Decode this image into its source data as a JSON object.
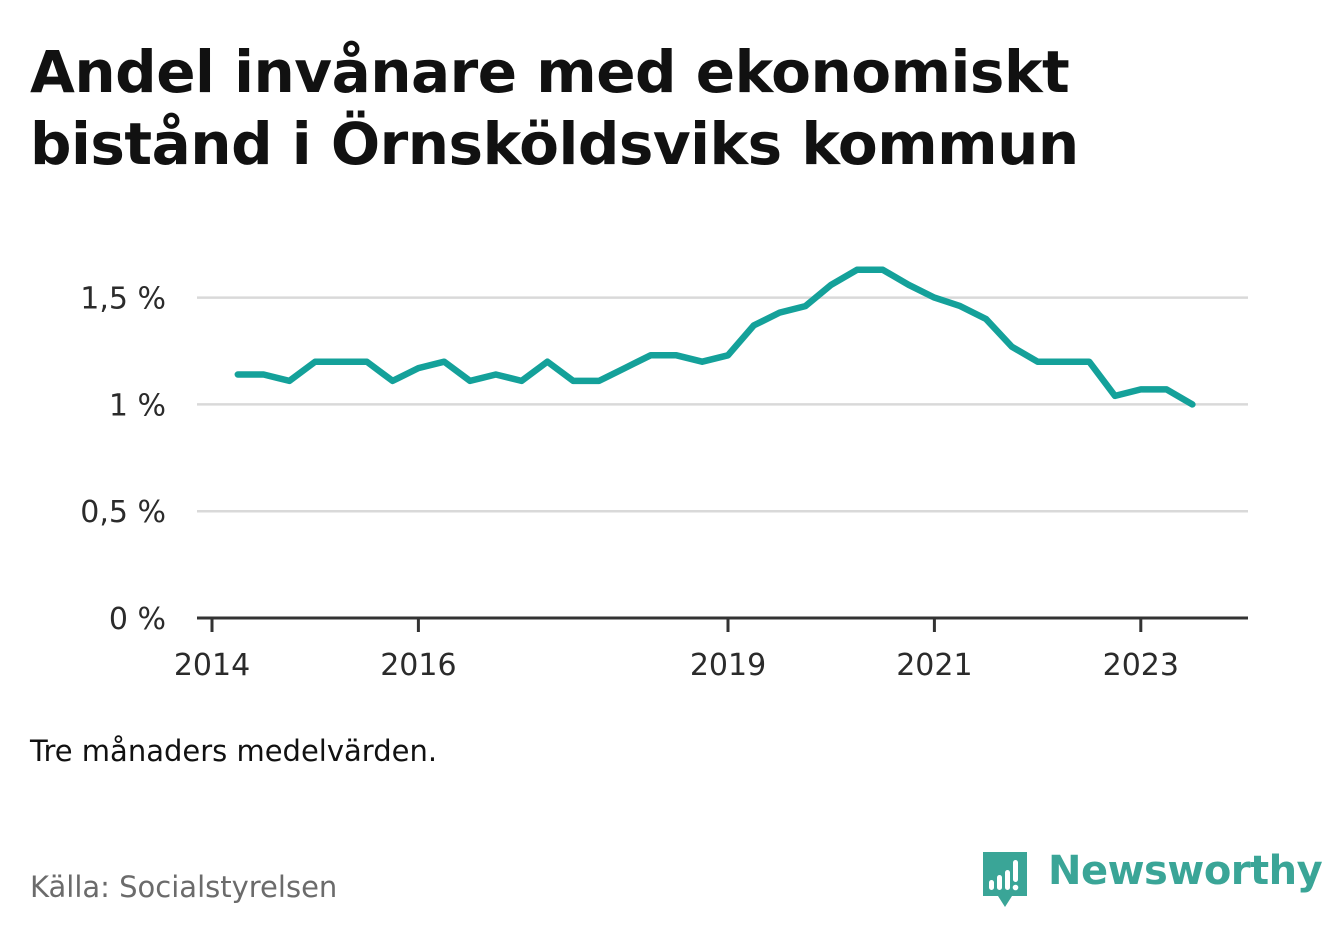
{
  "title": "Andel invånare med ekonomiskt bistånd i Örnsköldsviks kommun",
  "note": "Tre månaders medelvärden.",
  "source": "Källa: Socialstyrelsen",
  "brand": {
    "name": "Newsworthy",
    "color": "#3aa597",
    "icon": "bar-chart-speech-bubble-icon"
  },
  "chart_data": {
    "type": "line",
    "title": "Andel invånare med ekonomiskt bistånd i Örnsköldsviks kommun",
    "xlabel": "",
    "ylabel": "",
    "line_color": "#14a19a",
    "grid": true,
    "ylim": [
      0,
      1.75
    ],
    "xlim": [
      "2014-01-01",
      "2024-01-01"
    ],
    "y_ticks": [
      {
        "value": 0,
        "label": "0 %"
      },
      {
        "value": 0.5,
        "label": "0,5 %"
      },
      {
        "value": 1,
        "label": "1 %"
      },
      {
        "value": 1.5,
        "label": "1,5 %"
      }
    ],
    "x_ticks": [
      {
        "date": "2014-01-01",
        "label": "2014"
      },
      {
        "date": "2016-01-01",
        "label": "2016"
      },
      {
        "date": "2019-01-01",
        "label": "2019"
      },
      {
        "date": "2021-01-01",
        "label": "2021"
      },
      {
        "date": "2023-01-01",
        "label": "2023"
      }
    ],
    "series": [
      {
        "name": "",
        "points": [
          {
            "x": "2014-04",
            "y": 1.14
          },
          {
            "x": "2014-07",
            "y": 1.14
          },
          {
            "x": "2014-10",
            "y": 1.11
          },
          {
            "x": "2015-01",
            "y": 1.2
          },
          {
            "x": "2015-04",
            "y": 1.2
          },
          {
            "x": "2015-07",
            "y": 1.2
          },
          {
            "x": "2015-10",
            "y": 1.11
          },
          {
            "x": "2016-01",
            "y": 1.17
          },
          {
            "x": "2016-04",
            "y": 1.2
          },
          {
            "x": "2016-07",
            "y": 1.11
          },
          {
            "x": "2016-10",
            "y": 1.14
          },
          {
            "x": "2017-01",
            "y": 1.11
          },
          {
            "x": "2017-04",
            "y": 1.2
          },
          {
            "x": "2017-07",
            "y": 1.11
          },
          {
            "x": "2017-10",
            "y": 1.11
          },
          {
            "x": "2018-01",
            "y": 1.17
          },
          {
            "x": "2018-04",
            "y": 1.23
          },
          {
            "x": "2018-07",
            "y": 1.23
          },
          {
            "x": "2018-10",
            "y": 1.2
          },
          {
            "x": "2019-01",
            "y": 1.23
          },
          {
            "x": "2019-04",
            "y": 1.37
          },
          {
            "x": "2019-07",
            "y": 1.43
          },
          {
            "x": "2019-10",
            "y": 1.46
          },
          {
            "x": "2020-01",
            "y": 1.56
          },
          {
            "x": "2020-04",
            "y": 1.63
          },
          {
            "x": "2020-07",
            "y": 1.63
          },
          {
            "x": "2020-10",
            "y": 1.56
          },
          {
            "x": "2021-01",
            "y": 1.5
          },
          {
            "x": "2021-04",
            "y": 1.46
          },
          {
            "x": "2021-07",
            "y": 1.4
          },
          {
            "x": "2021-10",
            "y": 1.27
          },
          {
            "x": "2022-01",
            "y": 1.2
          },
          {
            "x": "2022-04",
            "y": 1.2
          },
          {
            "x": "2022-07",
            "y": 1.2
          },
          {
            "x": "2022-10",
            "y": 1.04
          },
          {
            "x": "2023-01",
            "y": 1.07
          },
          {
            "x": "2023-04",
            "y": 1.07
          },
          {
            "x": "2023-07",
            "y": 1.0
          }
        ]
      }
    ]
  }
}
